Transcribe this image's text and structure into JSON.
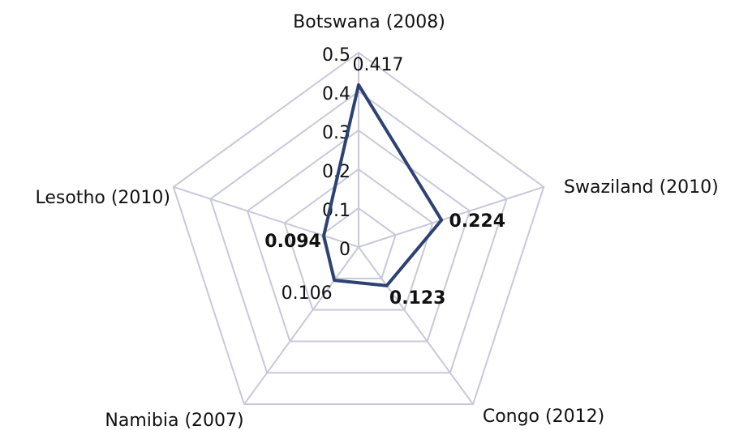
{
  "chart_data": {
    "type": "radar",
    "categories": [
      "Botswana (2008)",
      "Swaziland (2010)",
      "Congo (2012)",
      "Namibia (2007)",
      "Lesotho (2010)"
    ],
    "values": [
      0.417,
      0.224,
      0.123,
      0.106,
      0.094
    ],
    "bold_value_labels": [
      false,
      true,
      true,
      false,
      true
    ],
    "color": "#2e4272",
    "grid_color": "#c8c8dc",
    "rlim": [
      0,
      0.5
    ],
    "rticks": [
      0,
      0.1,
      0.2,
      0.3,
      0.4,
      0.5
    ],
    "grid": true
  }
}
